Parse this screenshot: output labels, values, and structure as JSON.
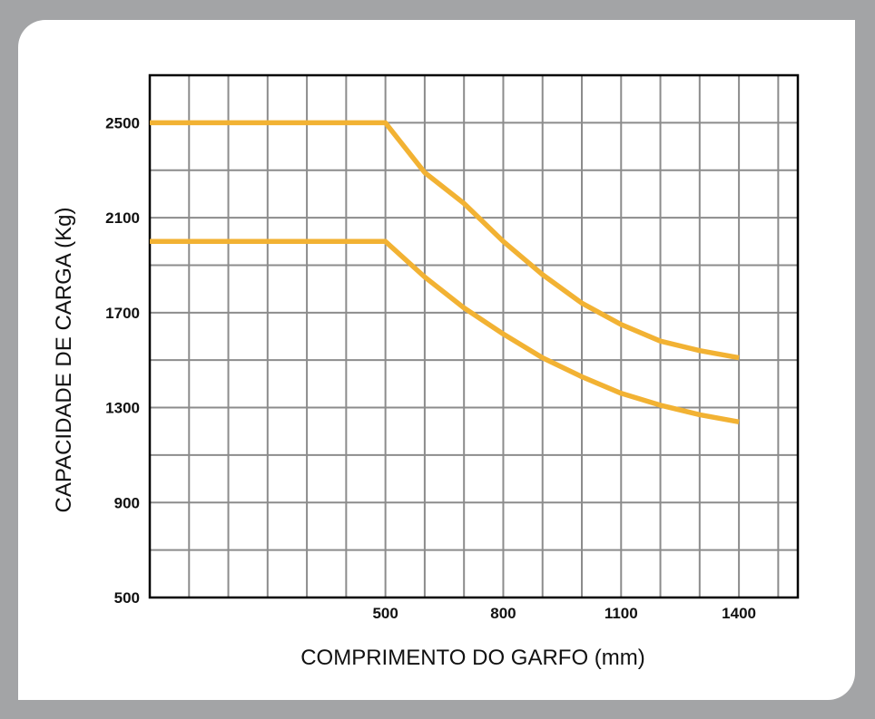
{
  "chart_data": {
    "type": "line",
    "xlabel": "COMPRIMENTO DO GARFO (mm)",
    "ylabel": "CAPACIDADE DE CARGA (Kg)",
    "x_ticks": [
      500,
      800,
      1100,
      1400
    ],
    "y_ticks": [
      500,
      900,
      1300,
      1700,
      2100,
      2500
    ],
    "xlim": [
      -100,
      1550
    ],
    "ylim": [
      500,
      2700
    ],
    "grid": true,
    "line_color": "#f2b233",
    "series": [
      {
        "x": [
          -100,
          500,
          600,
          700,
          800,
          900,
          1000,
          1100,
          1200,
          1300,
          1400
        ],
        "y": [
          2500,
          2500,
          2290,
          2160,
          2000,
          1860,
          1740,
          1650,
          1580,
          1540,
          1510
        ]
      },
      {
        "x": [
          -100,
          500,
          600,
          700,
          800,
          900,
          1000,
          1100,
          1200,
          1300,
          1400
        ],
        "y": [
          2000,
          2000,
          1850,
          1720,
          1610,
          1510,
          1430,
          1360,
          1310,
          1270,
          1240
        ]
      }
    ]
  }
}
